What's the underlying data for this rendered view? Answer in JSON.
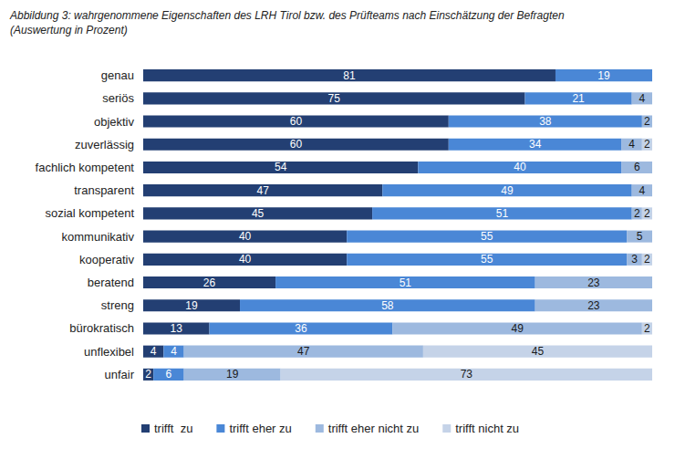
{
  "chart_data": {
    "type": "bar",
    "title": "Abbildung 3: wahrgenommene Eigenschaften des LRH Tirol bzw. des Prüfteams nach Einschätzung der Befragten (Auswertung in Prozent)",
    "orientation": "horizontal",
    "stacked": true,
    "data_labels": true,
    "tick_labels": "y",
    "legend": "bottom",
    "grid": false,
    "xlim": [
      0,
      100
    ],
    "categories": [
      "genau",
      "seriös",
      "objektiv",
      "zuverlässig",
      "fachlich kompetent",
      "transparent",
      "sozial kompetent",
      "kommunikativ",
      "kooperativ",
      "beratend",
      "streng",
      "bürokratisch",
      "unflexibel",
      "unfair"
    ],
    "series": [
      {
        "name": "trifft  zu",
        "color": "#233f73",
        "values": [
          81,
          75,
          60,
          60,
          54,
          47,
          45,
          40,
          40,
          26,
          19,
          13,
          4,
          2
        ]
      },
      {
        "name": "trifft eher zu",
        "color": "#4a87d6",
        "values": [
          19,
          21,
          38,
          34,
          40,
          49,
          51,
          55,
          55,
          51,
          58,
          36,
          4,
          6
        ]
      },
      {
        "name": "trifft eher nicht zu",
        "color": "#9db9df",
        "values": [
          null,
          4,
          2,
          4,
          6,
          4,
          2,
          5,
          3,
          23,
          23,
          49,
          47,
          19
        ]
      },
      {
        "name": "trifft nicht zu",
        "color": "#c5d3e8",
        "values": [
          null,
          null,
          null,
          2,
          null,
          null,
          2,
          null,
          2,
          null,
          null,
          2,
          45,
          73
        ]
      }
    ]
  }
}
